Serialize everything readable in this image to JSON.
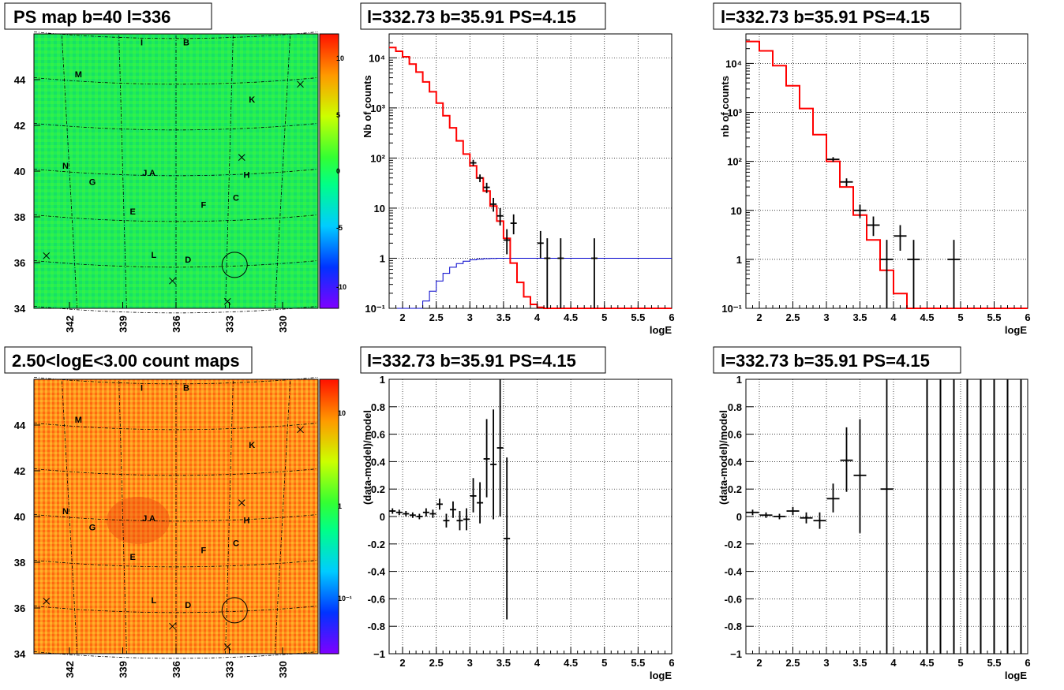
{
  "titles": {
    "ps_map": "PS map b=40 l=336",
    "count_map": "2.50<logE<3.00 count maps",
    "spec_a": "l=332.73 b=35.91 PS=4.15",
    "spec_b": "l=332.73 b=35.91 PS=4.15",
    "resid_a": "l=332.73 b=35.91 PS=4.15",
    "resid_b": "l=332.73 b=35.91 PS=4.15"
  },
  "colors": {
    "data": "#000000",
    "model": "#ff0000",
    "exposure": "#0000cc"
  },
  "maps": {
    "xticks": [
      "342",
      "339",
      "336",
      "333",
      "330"
    ],
    "yticks": [
      "44",
      "42",
      "40",
      "38",
      "36",
      "34"
    ],
    "source_labels": [
      {
        "t": "I",
        "l": 338.0,
        "b": 45.5
      },
      {
        "t": "B",
        "l": 335.6,
        "b": 45.5
      },
      {
        "t": "M",
        "l": 341.7,
        "b": 44.1
      },
      {
        "t": "K",
        "l": 331.9,
        "b": 43.0
      },
      {
        "t": "N",
        "l": 342.4,
        "b": 40.1
      },
      {
        "t": "J A",
        "l": 337.9,
        "b": 39.8
      },
      {
        "t": "H",
        "l": 332.2,
        "b": 39.7
      },
      {
        "t": "G",
        "l": 340.9,
        "b": 39.4
      },
      {
        "t": "C",
        "l": 332.8,
        "b": 38.7
      },
      {
        "t": "F",
        "l": 334.6,
        "b": 38.4
      },
      {
        "t": "E",
        "l": 338.6,
        "b": 38.1
      },
      {
        "t": "L",
        "l": 337.4,
        "b": 36.2
      },
      {
        "t": "D",
        "l": 335.5,
        "b": 36.0
      }
    ],
    "crosses": [
      {
        "l": 343.3,
        "b": 36.3
      },
      {
        "l": 329.0,
        "b": 43.8
      },
      {
        "l": 332.3,
        "b": 40.6
      },
      {
        "l": 336.2,
        "b": 35.2
      },
      {
        "l": 333.1,
        "b": 34.3
      }
    ],
    "circle": {
      "l": 332.7,
      "b": 35.9
    }
  },
  "ps_colorbar": {
    "ticks": [
      "10",
      "5",
      "0",
      "-5",
      "-10"
    ]
  },
  "count_colorbar": {
    "ticks": [
      "10",
      "1",
      "10⁻¹"
    ]
  },
  "axes": {
    "spec_ylabel_a": "Nb of counts",
    "spec_ylabel_b": "nb of counts",
    "resid_ylabel": "(data-model)/model",
    "xlabel": "logE",
    "spec_yticks": [
      "10⁴",
      "10³",
      "10²",
      "10",
      "1",
      "10⁻¹"
    ],
    "resid_yticks": [
      "1",
      "0.8",
      "0.6",
      "0.4",
      "0.2",
      "0",
      "-0.2",
      "-0.4",
      "-0.6",
      "-0.8",
      "−1"
    ],
    "xticks": [
      "2",
      "2.5",
      "3",
      "3.5",
      "4",
      "4.5",
      "5",
      "5.5",
      "6"
    ]
  },
  "chart_data": [
    {
      "type": "heatmap",
      "title": "PS map b=40 l=336",
      "xlabel": "",
      "ylabel": "",
      "xlim": [
        344,
        328
      ],
      "ylim": [
        34,
        46
      ],
      "zlim": [
        -12,
        12
      ],
      "description_values": "mostly near 0 (green) across the map"
    },
    {
      "type": "heatmap",
      "title": "2.50<logE<3.00 count maps",
      "xlabel": "",
      "ylabel": "",
      "xlim": [
        344,
        328
      ],
      "ylim": [
        34,
        46
      ],
      "zlim": [
        0.03,
        30
      ],
      "zscale": "log"
    },
    {
      "type": "line",
      "title": "l=332.73 b=35.91 PS=4.15",
      "xlabel": "logE",
      "ylabel": "Nb of counts",
      "xlim": [
        1.8,
        6.0
      ],
      "ylim": [
        0.1,
        30000
      ],
      "yscale": "log",
      "grid": true,
      "model_step": {
        "edges": [
          1.8,
          1.9,
          2.0,
          2.1,
          2.2,
          2.3,
          2.4,
          2.5,
          2.6,
          2.7,
          2.8,
          2.9,
          3.0,
          3.1,
          3.2,
          3.3,
          3.4,
          3.5,
          3.6,
          3.7,
          3.8,
          3.9,
          4.0,
          4.1,
          6.0
        ],
        "values": [
          16000,
          13500,
          10500,
          7500,
          5200,
          3300,
          2100,
          1250,
          700,
          400,
          220,
          120,
          70,
          40,
          22,
          11,
          5.5,
          2.5,
          0.8,
          0.33,
          0.17,
          0.12,
          0.105,
          0.1
        ]
      },
      "exposure_step": {
        "edges": [
          1.8,
          2.1,
          2.2,
          2.3,
          2.4,
          2.5,
          2.6,
          2.7,
          2.8,
          2.9,
          3.0,
          3.1,
          3.2,
          3.3,
          3.4,
          3.5,
          6.0
        ],
        "values": [
          0.1,
          0.1,
          0.1,
          0.14,
          0.22,
          0.35,
          0.5,
          0.66,
          0.78,
          0.87,
          0.93,
          0.96,
          0.98,
          0.99,
          1.0,
          1.0
        ]
      },
      "data_points": [
        {
          "x": 3.05,
          "y": 80,
          "lo": 70,
          "hi": 92
        },
        {
          "x": 3.15,
          "y": 40,
          "lo": 33,
          "hi": 47
        },
        {
          "x": 3.25,
          "y": 26,
          "lo": 20,
          "hi": 32
        },
        {
          "x": 3.35,
          "y": 12,
          "lo": 8.5,
          "hi": 16
        },
        {
          "x": 3.45,
          "y": 7,
          "lo": 4.5,
          "hi": 10
        },
        {
          "x": 3.55,
          "y": 2.3,
          "lo": 1.2,
          "hi": 3.8
        },
        {
          "x": 3.65,
          "y": 5,
          "lo": 3,
          "hi": 7.5
        },
        {
          "x": 4.05,
          "y": 2,
          "lo": 1,
          "hi": 3.5
        },
        {
          "x": 4.15,
          "y": 1,
          "lo": 0.1,
          "hi": 2.5
        },
        {
          "x": 4.35,
          "y": 1,
          "lo": 0.1,
          "hi": 2.5
        },
        {
          "x": 4.85,
          "y": 1,
          "lo": 0.1,
          "hi": 2.5
        }
      ]
    },
    {
      "type": "line",
      "title": "l=332.73 b=35.91 PS=4.15",
      "xlabel": "logE",
      "ylabel": "nb of counts",
      "xlim": [
        1.8,
        6.0
      ],
      "ylim": [
        0.1,
        40000
      ],
      "yscale": "log",
      "grid": true,
      "model_step": {
        "edges": [
          1.8,
          2.0,
          2.2,
          2.4,
          2.6,
          2.8,
          3.0,
          3.2,
          3.4,
          3.6,
          3.8,
          4.0,
          4.2,
          6.0
        ],
        "values": [
          28000,
          18000,
          9000,
          3500,
          1200,
          350,
          100,
          30,
          8,
          2.5,
          0.6,
          0.2,
          0.1
        ]
      },
      "data_points": [
        {
          "x": 3.1,
          "y": 110,
          "lo": 98,
          "hi": 122
        },
        {
          "x": 3.3,
          "y": 38,
          "lo": 31,
          "hi": 45
        },
        {
          "x": 3.5,
          "y": 10,
          "lo": 7,
          "hi": 13
        },
        {
          "x": 3.7,
          "y": 5,
          "lo": 3,
          "hi": 7.5
        },
        {
          "x": 3.9,
          "y": 1,
          "lo": 0.1,
          "hi": 2.5
        },
        {
          "x": 4.1,
          "y": 3,
          "lo": 1.5,
          "hi": 5
        },
        {
          "x": 4.3,
          "y": 1,
          "lo": 0.1,
          "hi": 2.5
        },
        {
          "x": 4.9,
          "y": 1,
          "lo": 0.1,
          "hi": 2.5
        }
      ]
    },
    {
      "type": "scatter",
      "title": "l=332.73 b=35.91 PS=4.15",
      "xlabel": "logE",
      "ylabel": "(data-model)/model",
      "xlim": [
        1.8,
        6.0
      ],
      "ylim": [
        -1,
        1
      ],
      "grid": true,
      "data_points": [
        {
          "x": 1.85,
          "y": 0.04,
          "lo": 0.02,
          "hi": 0.06
        },
        {
          "x": 1.95,
          "y": 0.03,
          "lo": 0.01,
          "hi": 0.05
        },
        {
          "x": 2.05,
          "y": 0.02,
          "lo": 0.0,
          "hi": 0.04
        },
        {
          "x": 2.15,
          "y": 0.01,
          "lo": -0.01,
          "hi": 0.03
        },
        {
          "x": 2.25,
          "y": 0.0,
          "lo": -0.02,
          "hi": 0.02
        },
        {
          "x": 2.35,
          "y": 0.03,
          "lo": 0.0,
          "hi": 0.06
        },
        {
          "x": 2.45,
          "y": 0.02,
          "lo": -0.01,
          "hi": 0.05
        },
        {
          "x": 2.55,
          "y": 0.09,
          "lo": 0.05,
          "hi": 0.13
        },
        {
          "x": 2.65,
          "y": -0.03,
          "lo": -0.08,
          "hi": 0.02
        },
        {
          "x": 2.75,
          "y": 0.05,
          "lo": -0.01,
          "hi": 0.11
        },
        {
          "x": 2.85,
          "y": -0.03,
          "lo": -0.1,
          "hi": 0.04
        },
        {
          "x": 2.95,
          "y": -0.02,
          "lo": -0.1,
          "hi": 0.06
        },
        {
          "x": 3.05,
          "y": 0.15,
          "lo": 0.03,
          "hi": 0.28
        },
        {
          "x": 3.15,
          "y": 0.1,
          "lo": -0.05,
          "hi": 0.25
        },
        {
          "x": 3.25,
          "y": 0.42,
          "lo": 0.14,
          "hi": 0.71
        },
        {
          "x": 3.35,
          "y": 0.38,
          "lo": -0.02,
          "hi": 0.78
        },
        {
          "x": 3.45,
          "y": 0.5,
          "lo": 0.0,
          "hi": 1.0
        },
        {
          "x": 3.55,
          "y": -0.16,
          "lo": -0.75,
          "hi": 0.43
        }
      ]
    },
    {
      "type": "scatter",
      "title": "l=332.73 b=35.91 PS=4.15",
      "xlabel": "logE",
      "ylabel": "(data-model)/model",
      "xlim": [
        1.8,
        6.0
      ],
      "ylim": [
        -1,
        1
      ],
      "grid": true,
      "data_points": [
        {
          "x": 1.9,
          "y": 0.03,
          "lo": 0.01,
          "hi": 0.05
        },
        {
          "x": 2.1,
          "y": 0.01,
          "lo": -0.01,
          "hi": 0.03
        },
        {
          "x": 2.3,
          "y": 0.0,
          "lo": -0.02,
          "hi": 0.02
        },
        {
          "x": 2.5,
          "y": 0.04,
          "lo": 0.01,
          "hi": 0.07
        },
        {
          "x": 2.7,
          "y": -0.01,
          "lo": -0.05,
          "hi": 0.03
        },
        {
          "x": 2.9,
          "y": -0.03,
          "lo": -0.09,
          "hi": 0.03
        },
        {
          "x": 3.1,
          "y": 0.13,
          "lo": 0.03,
          "hi": 0.24
        },
        {
          "x": 3.3,
          "y": 0.41,
          "lo": 0.18,
          "hi": 0.65
        },
        {
          "x": 3.5,
          "y": 0.3,
          "lo": -0.12,
          "hi": 0.71
        },
        {
          "x": 3.9,
          "y": 0.2,
          "lo": -1.0,
          "hi": 1.0
        }
      ],
      "vertical_bars_x": [
        4.5,
        4.7,
        4.9,
        5.1,
        5.3,
        5.5,
        5.7,
        5.9
      ]
    }
  ]
}
